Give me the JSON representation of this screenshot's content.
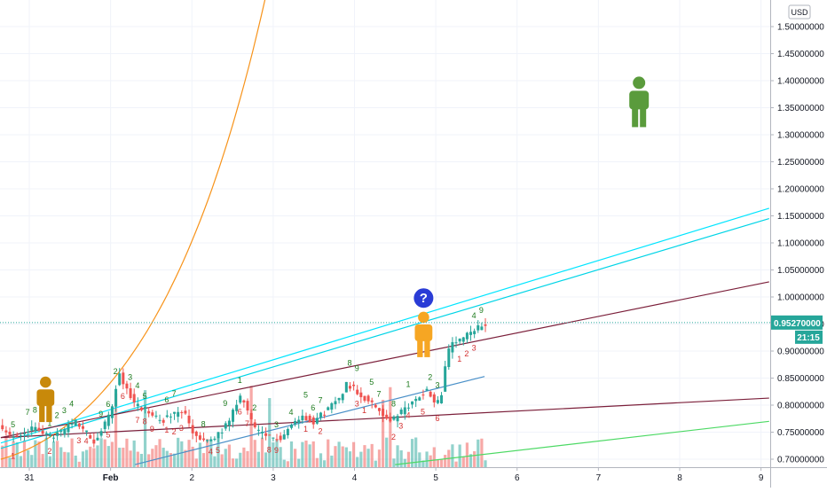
{
  "chart_data": {
    "type": "candlestick",
    "currency_badge": "USD",
    "y_axis": {
      "range": [
        0.69,
        1.56
      ],
      "ticks": [
        "1.50000000",
        "1.45000000",
        "1.40000000",
        "1.35000000",
        "1.30000000",
        "1.25000000",
        "1.20000000",
        "1.15000000",
        "1.10000000",
        "1.05000000",
        "1.00000000",
        "0.95000000",
        "0.90000000",
        "0.85000000",
        "0.80000000",
        "0.75000000",
        "0.70000000"
      ]
    },
    "x_axis": {
      "ticks": [
        {
          "label": "31",
          "day": 31,
          "bold": false
        },
        {
          "label": "Feb",
          "day": 32,
          "bold": true
        },
        {
          "label": "2",
          "day": 33,
          "bold": false
        },
        {
          "label": "3",
          "day": 34,
          "bold": false
        },
        {
          "label": "4",
          "day": 35,
          "bold": false
        },
        {
          "label": "5",
          "day": 36,
          "bold": false
        },
        {
          "label": "6",
          "day": 37,
          "bold": false
        },
        {
          "label": "7",
          "day": 38,
          "bold": false
        },
        {
          "label": "8",
          "day": 39,
          "bold": false
        },
        {
          "label": "9",
          "day": 40,
          "bold": false
        }
      ],
      "range": [
        30.65,
        40.1
      ]
    },
    "last_price": {
      "label": "0.95270000",
      "value": 0.9527
    },
    "countdown": "21:15",
    "price_path": [
      [
        30.65,
        0.76
      ],
      [
        30.8,
        0.74
      ],
      [
        30.95,
        0.75
      ],
      [
        31.1,
        0.76
      ],
      [
        31.25,
        0.74
      ],
      [
        31.4,
        0.75
      ],
      [
        31.55,
        0.77
      ],
      [
        31.7,
        0.75
      ],
      [
        31.8,
        0.73
      ],
      [
        31.95,
        0.77
      ],
      [
        32.02,
        0.8
      ],
      [
        32.1,
        0.86
      ],
      [
        32.2,
        0.83
      ],
      [
        32.3,
        0.8
      ],
      [
        32.45,
        0.79
      ],
      [
        32.6,
        0.77
      ],
      [
        32.75,
        0.78
      ],
      [
        32.9,
        0.79
      ],
      [
        33.0,
        0.75
      ],
      [
        33.15,
        0.73
      ],
      [
        33.3,
        0.74
      ],
      [
        33.45,
        0.77
      ],
      [
        33.55,
        0.8
      ],
      [
        33.62,
        0.82
      ],
      [
        33.7,
        0.78
      ],
      [
        33.8,
        0.75
      ],
      [
        33.95,
        0.74
      ],
      [
        34.1,
        0.74
      ],
      [
        34.2,
        0.76
      ],
      [
        34.35,
        0.78
      ],
      [
        34.5,
        0.77
      ],
      [
        34.65,
        0.79
      ],
      [
        34.8,
        0.81
      ],
      [
        34.9,
        0.84
      ],
      [
        35.0,
        0.83
      ],
      [
        35.15,
        0.81
      ],
      [
        35.3,
        0.79
      ],
      [
        35.45,
        0.77
      ],
      [
        35.6,
        0.79
      ],
      [
        35.75,
        0.81
      ],
      [
        35.9,
        0.83
      ],
      [
        36.0,
        0.8
      ],
      [
        36.1,
        0.83
      ],
      [
        36.12,
        0.89
      ],
      [
        36.2,
        0.91
      ],
      [
        36.3,
        0.92
      ],
      [
        36.4,
        0.93
      ],
      [
        36.5,
        0.94
      ],
      [
        36.6,
        0.95
      ]
    ],
    "volume_max": 60,
    "lines": [
      {
        "name": "orange-curve",
        "color": "#f7931a",
        "kind": "exp",
        "y0": 0.7,
        "x0": 30.65,
        "rate": 0.125
      },
      {
        "name": "cyan-channel-upper",
        "color": "#00e5ff",
        "p1": [
          30.65,
          0.73
        ],
        "p2": [
          40.1,
          1.164
        ]
      },
      {
        "name": "cyan-channel-lower",
        "color": "#00d4e6",
        "p1": [
          30.65,
          0.72
        ],
        "p2": [
          40.1,
          1.145
        ]
      },
      {
        "name": "maroon-line-upper",
        "color": "#7b1f3a",
        "p1": [
          30.65,
          0.74
        ],
        "p2": [
          40.1,
          1.028
        ]
      },
      {
        "name": "maroon-line-lower",
        "color": "#7b1f3a",
        "p1": [
          30.65,
          0.74
        ],
        "p2": [
          40.1,
          0.813
        ]
      },
      {
        "name": "green-line",
        "color": "#4cd964",
        "p1": [
          35.5,
          0.69
        ],
        "p2": [
          40.1,
          0.77
        ]
      },
      {
        "name": "blue-moving-average",
        "color": "#4a90c8",
        "p1": [
          32.3,
          0.69
        ],
        "p2": [
          36.6,
          0.853
        ]
      }
    ],
    "green_labels": [
      "5",
      "7",
      "8",
      "1",
      "2",
      "3",
      "4",
      "9",
      "6",
      "2",
      "3",
      "4",
      "5",
      "6",
      "7",
      "8",
      "9",
      "1",
      "2",
      "3",
      "4",
      "5",
      "6",
      "7",
      "8",
      "9"
    ],
    "red_labels": [
      "1",
      "2",
      "3",
      "4",
      "5",
      "6",
      "7",
      "8",
      "9",
      "1",
      "2",
      "3",
      "4",
      "5",
      "6",
      "7",
      "8",
      "9",
      "1",
      "2",
      "3",
      "1",
      "2",
      "3",
      "4",
      "5",
      "6"
    ],
    "figures": [
      {
        "name": "figure-person-gold",
        "color": "#c8890a",
        "at": [
          31.2,
          0.81
        ]
      },
      {
        "name": "figure-person-orange",
        "color": "#f6a623",
        "at": [
          35.85,
          0.93
        ]
      },
      {
        "name": "figure-person-green",
        "color": "#5a9b3c",
        "at": [
          38.5,
          1.36
        ]
      }
    ],
    "question_icon": {
      "color": "#2a3cd6",
      "at": [
        35.85,
        0.998
      ]
    }
  }
}
